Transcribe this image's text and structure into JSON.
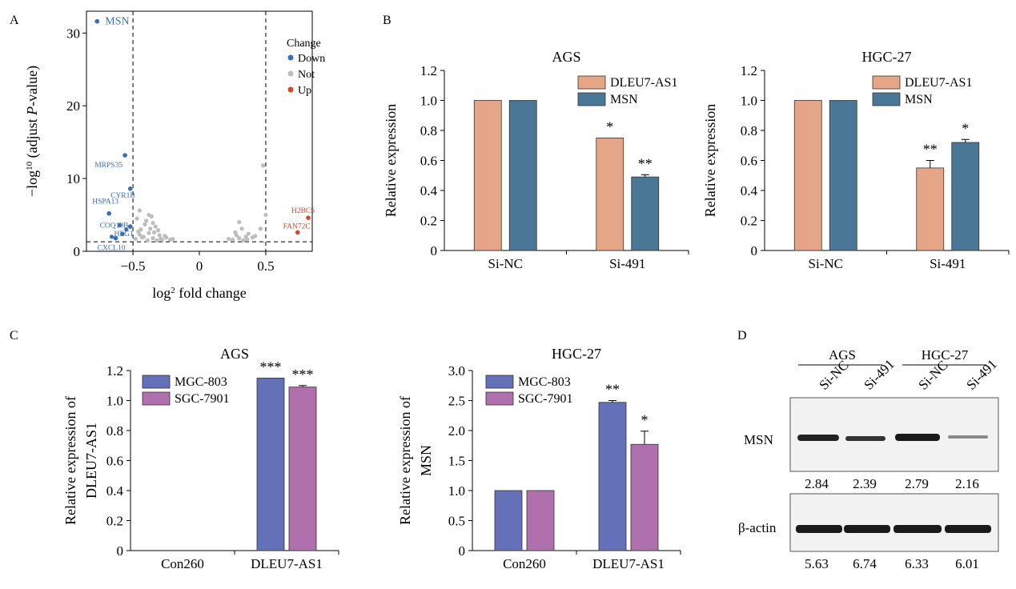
{
  "chart_data": [
    {
      "panel": "A",
      "type": "scatter",
      "xlabel_base": "log",
      "xlabel_sup": "2",
      "xlabel_rest": " fold change",
      "ylabel_pre": "−log",
      "ylabel_sup": "10",
      "ylabel_mid": " (adjust ",
      "ylabel_italic": "P",
      "ylabel_post": "-value)",
      "xlim": [
        -0.85,
        0.85
      ],
      "ylim": [
        0,
        33
      ],
      "xticks": [
        -0.5,
        0,
        0.5
      ],
      "xtick_labels": [
        "−0.5",
        "0",
        "0.5"
      ],
      "yticks": [
        0,
        10,
        20,
        30
      ],
      "threshold_lines": {
        "x": [
          -0.5,
          0.5
        ],
        "y": 1.3
      },
      "legend": {
        "title": "Change",
        "position": "top-right",
        "items": [
          {
            "name": "Down",
            "color": "#3b6db4"
          },
          {
            "name": "Not",
            "color": "#bdbdbd"
          },
          {
            "name": "Up",
            "color": "#d9472b"
          }
        ]
      },
      "labeled_points": [
        {
          "label": "MSN",
          "x": -0.77,
          "y": 31.6,
          "group": "Down"
        },
        {
          "label": "MRPS35",
          "x": -0.56,
          "y": 13.2,
          "group": "Down"
        },
        {
          "label": "CYR1B",
          "x": -0.52,
          "y": 8.6,
          "group": "Down"
        },
        {
          "label": "HSPA13",
          "x": -0.68,
          "y": 5.2,
          "group": "Down"
        },
        {
          "label": "COQ10B",
          "x": -0.6,
          "y": 3.6,
          "group": "Down"
        },
        {
          "label": "HEG1",
          "x": -0.52,
          "y": 3.4,
          "group": "Down"
        },
        {
          "label": "CXCL10",
          "x": -0.63,
          "y": 1.8,
          "group": "Down"
        },
        {
          "label": "H2BC5",
          "x": 0.82,
          "y": 4.6,
          "group": "Up"
        },
        {
          "label": "FAN72C",
          "x": 0.74,
          "y": 2.6,
          "group": "Up"
        }
      ],
      "other_points": {
        "Down": [
          [
            -0.55,
            3.0
          ],
          [
            -0.66,
            2.0
          ],
          [
            -0.58,
            2.4
          ]
        ],
        "Not": [
          [
            -0.42,
            2.0
          ],
          [
            -0.38,
            2.5
          ],
          [
            -0.35,
            1.8
          ],
          [
            -0.44,
            3.0
          ],
          [
            -0.3,
            2.2
          ],
          [
            -0.4,
            4.2
          ],
          [
            -0.33,
            3.4
          ],
          [
            -0.45,
            5.6
          ],
          [
            -0.28,
            1.6
          ],
          [
            -0.36,
            4.8
          ],
          [
            -0.25,
            1.9
          ],
          [
            -0.46,
            2.7
          ],
          [
            -0.39,
            1.5
          ],
          [
            -0.31,
            2.9
          ],
          [
            -0.48,
            1.7
          ],
          [
            -0.22,
            1.6
          ],
          [
            -0.41,
            3.7
          ],
          [
            -0.34,
            2.6
          ],
          [
            -0.43,
            1.9
          ],
          [
            -0.29,
            1.7
          ],
          [
            -0.37,
            3.1
          ],
          [
            -0.47,
            4.5
          ],
          [
            -0.26,
            2.1
          ],
          [
            -0.32,
            1.5
          ],
          [
            -0.2,
            1.7
          ],
          [
            -0.45,
            2.3
          ],
          [
            -0.38,
            5.0
          ],
          [
            -0.35,
            3.9
          ],
          [
            0.25,
            1.6
          ],
          [
            0.28,
            2.2
          ],
          [
            0.3,
            1.8
          ],
          [
            0.32,
            3.1
          ],
          [
            0.35,
            2.0
          ],
          [
            0.27,
            2.6
          ],
          [
            0.33,
            1.5
          ],
          [
            0.37,
            2.4
          ],
          [
            0.22,
            1.7
          ],
          [
            0.3,
            4.0
          ],
          [
            0.4,
            1.9
          ],
          [
            0.48,
            11.8
          ],
          [
            0.5,
            5.0
          ],
          [
            0.46,
            3.1
          ],
          [
            0.42,
            2.1
          ],
          [
            0.36,
            1.6
          ]
        ]
      }
    },
    {
      "panel": "B-left",
      "type": "bar",
      "title": "AGS",
      "ylabel": "Relative expression",
      "categories": [
        "Si-NC",
        "Si-491"
      ],
      "ylim": [
        0,
        1.2
      ],
      "yticks": [
        0,
        0.2,
        0.4,
        0.6,
        0.8,
        1.0,
        1.2
      ],
      "ytick_labels": [
        "0",
        "0.2",
        "0.4",
        "0.6",
        "0.8",
        "1.0",
        "1.2"
      ],
      "legend_position": "top-right",
      "series": [
        {
          "name": "DLEU7-AS1",
          "color": "#e5a687",
          "values": [
            1.0,
            0.75
          ],
          "errors": [
            0,
            0
          ],
          "sig": [
            "",
            "*"
          ]
        },
        {
          "name": "MSN",
          "color": "#4a7795",
          "values": [
            1.0,
            0.49
          ],
          "errors": [
            0,
            0.015
          ],
          "sig": [
            "",
            "**"
          ]
        }
      ]
    },
    {
      "panel": "B-right",
      "type": "bar",
      "title": "HGC-27",
      "ylabel": "Relative expression",
      "categories": [
        "Si-NC",
        "Si-491"
      ],
      "ylim": [
        0,
        1.2
      ],
      "yticks": [
        0,
        0.2,
        0.4,
        0.6,
        0.8,
        1.0,
        1.2
      ],
      "ytick_labels": [
        "0",
        "0.2",
        "0.4",
        "0.6",
        "0.8",
        "1.0",
        "1.2"
      ],
      "legend_position": "top-right",
      "series": [
        {
          "name": "DLEU7-AS1",
          "color": "#e5a687",
          "values": [
            1.0,
            0.55
          ],
          "errors": [
            0,
            0.05
          ],
          "sig": [
            "",
            "**"
          ]
        },
        {
          "name": "MSN",
          "color": "#4a7795",
          "values": [
            1.0,
            0.72
          ],
          "errors": [
            0,
            0.02
          ],
          "sig": [
            "",
            "*"
          ]
        }
      ]
    },
    {
      "panel": "C-left",
      "type": "bar",
      "title": "AGS",
      "ylabel": [
        "Relative expression of",
        "DLEU7-AS1"
      ],
      "categories": [
        "Con260",
        "DLEU7-AS1"
      ],
      "ylim": [
        0,
        1.2
      ],
      "yticks": [
        0,
        0.2,
        0.4,
        0.6,
        0.8,
        1.0,
        1.2
      ],
      "ytick_labels": [
        "0",
        "0.2",
        "0.4",
        "0.6",
        "0.8",
        "1.0",
        "1.2"
      ],
      "legend_position": "top-left",
      "series": [
        {
          "name": "MGC-803",
          "color": "#6470b8",
          "values": [
            0,
            1.15
          ],
          "errors": [
            0,
            0
          ],
          "sig": [
            "",
            "***"
          ]
        },
        {
          "name": "SGC-7901",
          "color": "#b06fad",
          "values": [
            0,
            1.09
          ],
          "errors": [
            0,
            0.01
          ],
          "sig": [
            "",
            "***"
          ]
        }
      ]
    },
    {
      "panel": "C-right",
      "type": "bar",
      "title": "HGC-27",
      "ylabel": [
        "Relative expression of",
        "MSN"
      ],
      "categories": [
        "Con260",
        "DLEU7-AS1"
      ],
      "ylim": [
        0,
        3.0
      ],
      "yticks": [
        0,
        0.5,
        1.0,
        1.5,
        2.0,
        2.5,
        3.0
      ],
      "ytick_labels": [
        "0",
        "0.5",
        "1.0",
        "1.5",
        "2.0",
        "2.5",
        "3.0"
      ],
      "legend_position": "top-left",
      "series": [
        {
          "name": "MGC-803",
          "color": "#6470b8",
          "values": [
            1.0,
            2.47
          ],
          "errors": [
            0,
            0.03
          ],
          "sig": [
            "",
            "**"
          ]
        },
        {
          "name": "SGC-7901",
          "color": "#b06fad",
          "values": [
            1.0,
            1.77
          ],
          "errors": [
            0,
            0.22
          ],
          "sig": [
            "",
            "*"
          ]
        }
      ]
    }
  ],
  "panel_labels": {
    "a": "A",
    "b": "B",
    "c": "C",
    "d": "D"
  },
  "blot": {
    "groups": [
      "AGS",
      "HGC-27"
    ],
    "lanes": [
      "Si-NC",
      "Si-491",
      "Si-NC",
      "Si-491"
    ],
    "msn_label": "MSN",
    "actin_label": "β-actin",
    "msn_values": [
      "2.84",
      "2.39",
      "2.79",
      "2.16"
    ],
    "actin_values": [
      "5.63",
      "6.74",
      "6.33",
      "6.01"
    ]
  }
}
